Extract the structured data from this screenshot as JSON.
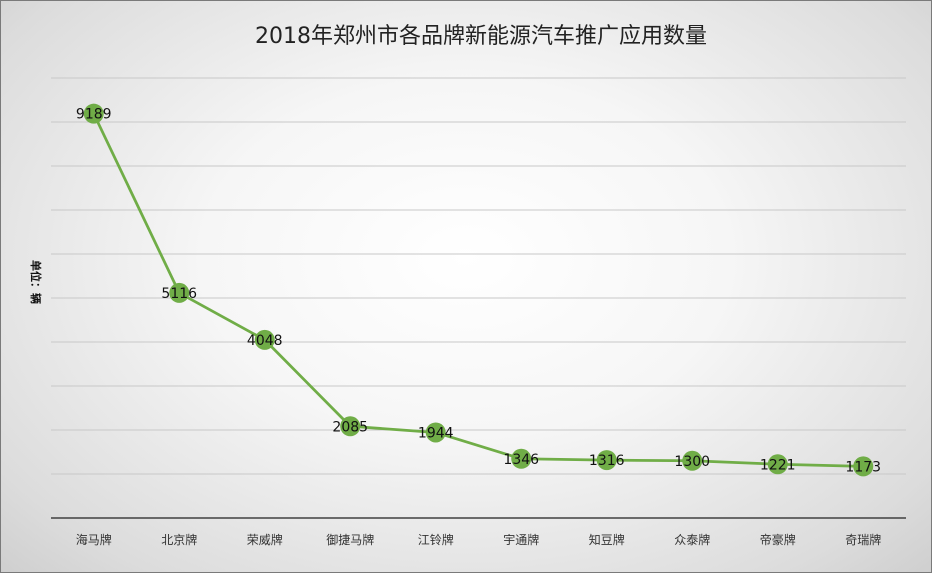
{
  "chart_data": {
    "type": "line",
    "title": "2018年郑州市各品牌新能源汽车推广应用数量",
    "ylabel": "单位：辆",
    "xlabel": "",
    "categories": [
      "海马牌",
      "北京牌",
      "荣威牌",
      "御捷马牌",
      "江铃牌",
      "宇通牌",
      "知豆牌",
      "众泰牌",
      "帝豪牌",
      "奇瑞牌"
    ],
    "series": [
      {
        "values": [
          9189,
          5116,
          4048,
          2085,
          1944,
          1346,
          1316,
          1300,
          1221,
          1173
        ]
      }
    ],
    "ylim": [
      0,
      10000
    ],
    "grid": true,
    "legend": "none",
    "colors": {
      "line": "#70ad47",
      "marker": "#70ad47",
      "grid": "#c8c8c8",
      "axis": "#404040"
    }
  }
}
